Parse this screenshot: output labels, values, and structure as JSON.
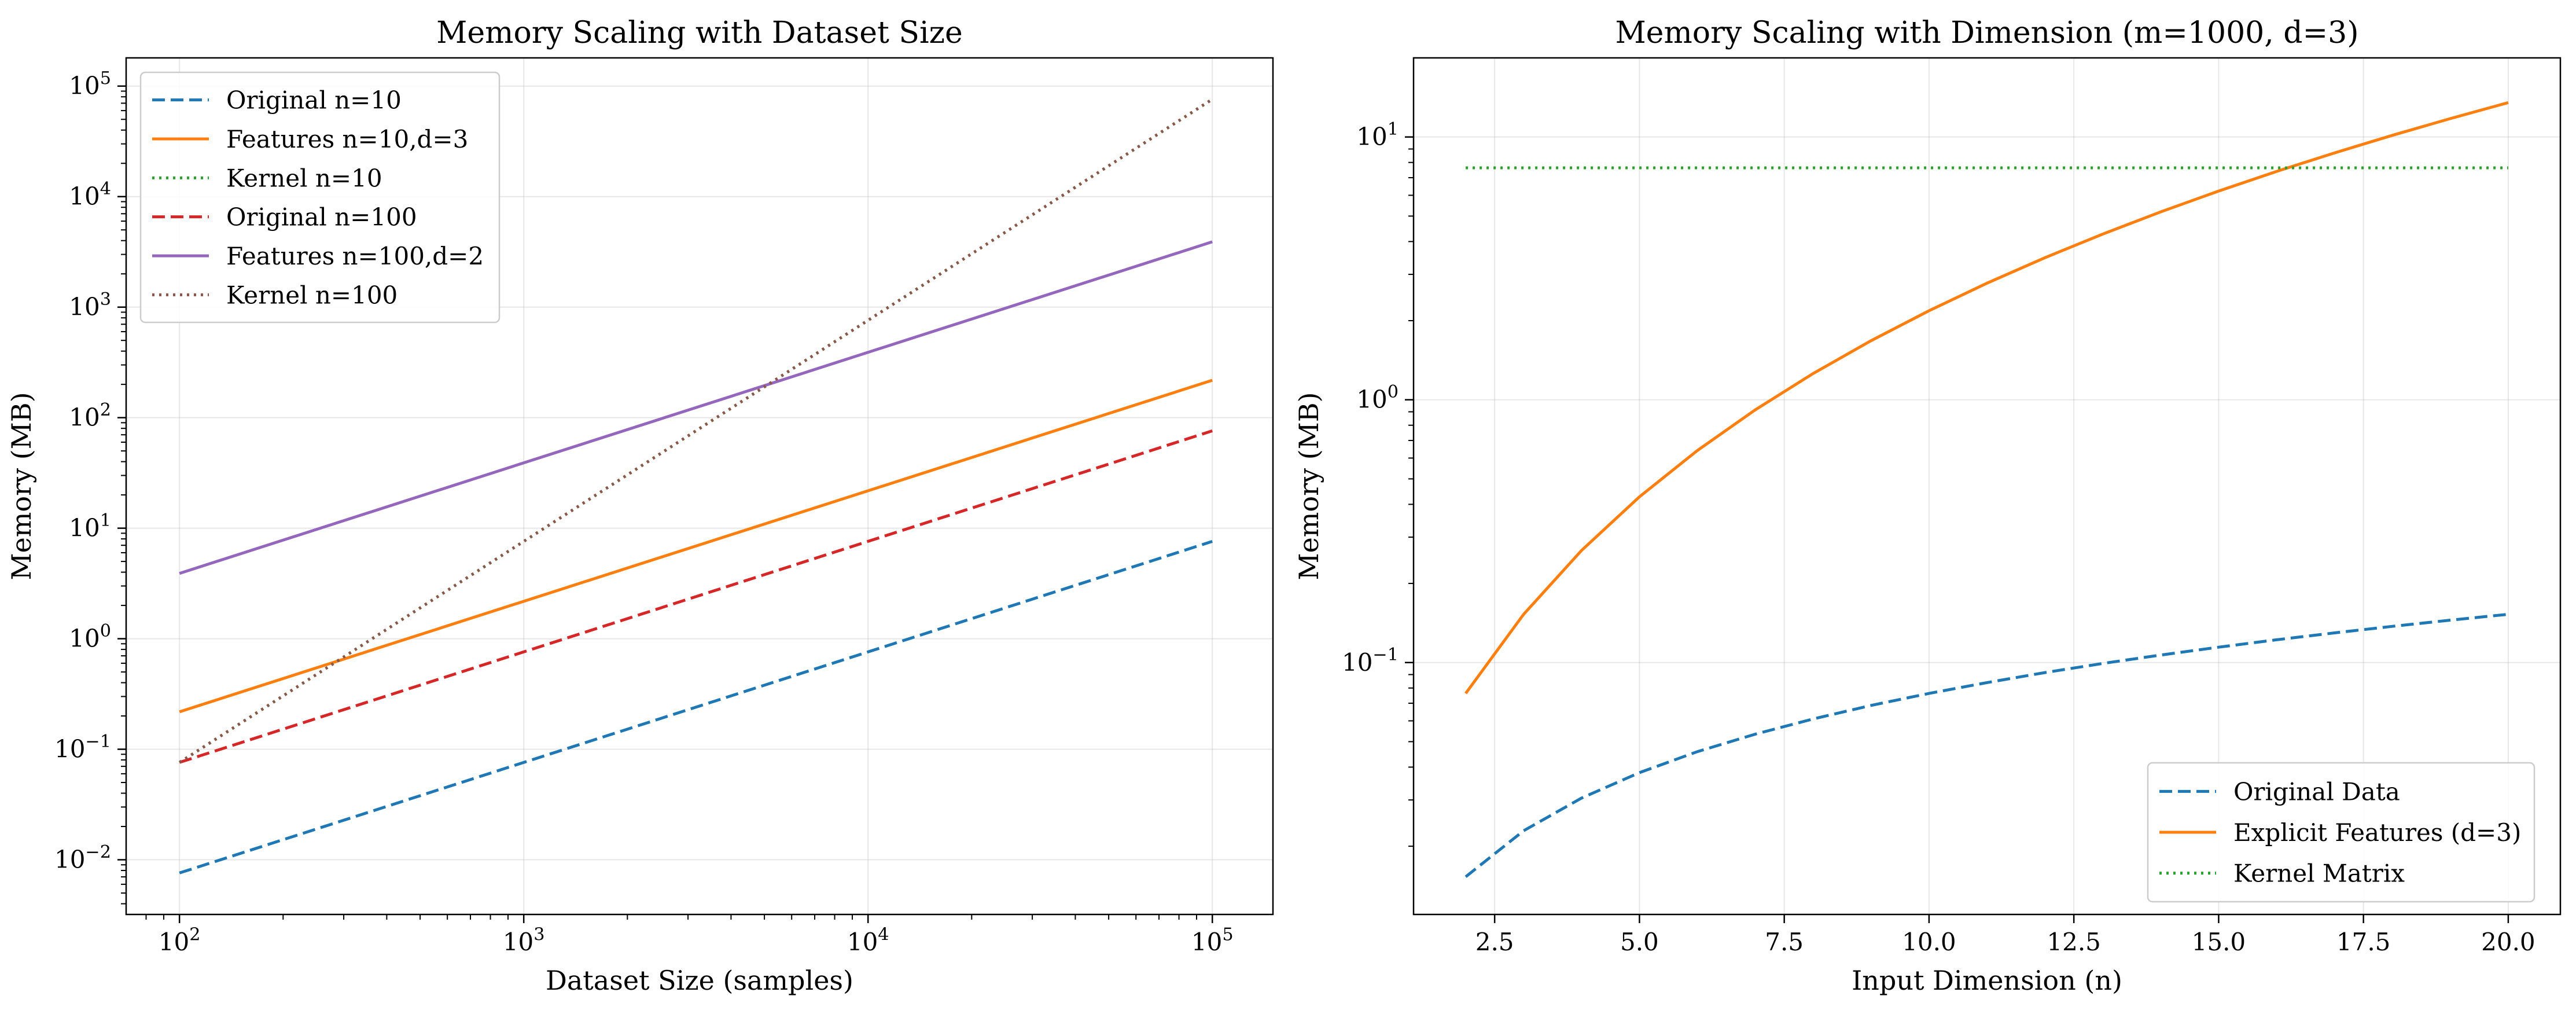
{
  "chart_data": [
    {
      "type": "line",
      "title": "Memory Scaling with Dataset Size",
      "xlabel": "Dataset Size (samples)",
      "ylabel": "Memory (MB)",
      "xscale": "log",
      "yscale": "log",
      "xlim": [
        70,
        150000
      ],
      "ylim": [
        0.0032,
        180000
      ],
      "x_ticks": [
        {
          "value": 100,
          "label": "10^2"
        },
        {
          "value": 1000,
          "label": "10^3"
        },
        {
          "value": 10000,
          "label": "10^4"
        },
        {
          "value": 100000,
          "label": "10^5"
        }
      ],
      "y_ticks": [
        {
          "value": 0.01,
          "label": "10^-2"
        },
        {
          "value": 0.1,
          "label": "10^-1"
        },
        {
          "value": 1,
          "label": "10^0"
        },
        {
          "value": 10,
          "label": "10^1"
        },
        {
          "value": 100,
          "label": "10^2"
        },
        {
          "value": 1000,
          "label": "10^3"
        },
        {
          "value": 10000,
          "label": "10^4"
        },
        {
          "value": 100000,
          "label": "10^5"
        }
      ],
      "grid": true,
      "legend_position": "upper-left",
      "series": [
        {
          "name": "Original n=10",
          "color": "#1f77b4",
          "style": "dashed",
          "x": [
            100,
            100000
          ],
          "y": [
            0.0076,
            7.6
          ]
        },
        {
          "name": "Features n=10,d=3",
          "color": "#ff7f0e",
          "style": "solid",
          "x": [
            100,
            100000
          ],
          "y": [
            0.218,
            218
          ]
        },
        {
          "name": "Kernel n=10",
          "color": "#2ca02c",
          "style": "dotted",
          "x": [
            100,
            100000
          ],
          "y": [
            0.076,
            76000
          ]
        },
        {
          "name": "Original n=100",
          "color": "#d62728",
          "style": "dashed",
          "x": [
            100,
            100000
          ],
          "y": [
            0.076,
            76
          ]
        },
        {
          "name": "Features n=100,d=2",
          "color": "#9467bd",
          "style": "solid",
          "x": [
            100,
            100000
          ],
          "y": [
            3.9,
            3900
          ]
        },
        {
          "name": "Kernel n=100",
          "color": "#8c564b",
          "style": "dotted",
          "x": [
            100,
            100000
          ],
          "y": [
            0.076,
            76000
          ]
        }
      ]
    },
    {
      "type": "line",
      "title": "Memory Scaling with Dimension (m=1000, d=3)",
      "xlabel": "Input Dimension (n)",
      "ylabel": "Memory (MB)",
      "xscale": "linear",
      "yscale": "log",
      "xlim": [
        1.1,
        20.9
      ],
      "ylim": [
        0.011,
        20
      ],
      "x_ticks": [
        {
          "value": 2.5,
          "label": "2.5"
        },
        {
          "value": 5.0,
          "label": "5.0"
        },
        {
          "value": 7.5,
          "label": "7.5"
        },
        {
          "value": 10.0,
          "label": "10.0"
        },
        {
          "value": 12.5,
          "label": "12.5"
        },
        {
          "value": 15.0,
          "label": "15.0"
        },
        {
          "value": 17.5,
          "label": "17.5"
        },
        {
          "value": 20.0,
          "label": "20.0"
        }
      ],
      "y_ticks": [
        {
          "value": 0.1,
          "label": "10^-1"
        },
        {
          "value": 1,
          "label": "10^0"
        },
        {
          "value": 10,
          "label": "10^1"
        }
      ],
      "grid": true,
      "legend_position": "lower-right",
      "series": [
        {
          "name": "Original Data",
          "color": "#1f77b4",
          "style": "dashed",
          "x": [
            2,
            3,
            4,
            5,
            6,
            7,
            8,
            9,
            10,
            11,
            12,
            13,
            14,
            15,
            16,
            17,
            18,
            19,
            20
          ],
          "y": [
            0.0153,
            0.0229,
            0.0305,
            0.0381,
            0.0458,
            0.0534,
            0.061,
            0.0687,
            0.0763,
            0.0839,
            0.0916,
            0.0992,
            0.1068,
            0.1144,
            0.1221,
            0.1297,
            0.1373,
            0.145,
            0.1526
          ]
        },
        {
          "name": "Explicit Features (d=3)",
          "color": "#ff7f0e",
          "style": "solid",
          "x": [
            2,
            3,
            4,
            5,
            6,
            7,
            8,
            9,
            10,
            11,
            12,
            13,
            14,
            15,
            16,
            17,
            18,
            19,
            20
          ],
          "y": [
            0.0763,
            0.1526,
            0.267,
            0.4272,
            0.6409,
            0.9155,
            1.2589,
            1.6785,
            2.182,
            2.7771,
            3.4714,
            4.2725,
            5.188,
            6.2256,
            7.3929,
            8.6975,
            10.147,
            11.749,
            13.512
          ]
        },
        {
          "name": "Kernel Matrix",
          "color": "#2ca02c",
          "style": "dotted",
          "x": [
            2,
            20
          ],
          "y": [
            7.63,
            7.63
          ]
        }
      ]
    }
  ]
}
